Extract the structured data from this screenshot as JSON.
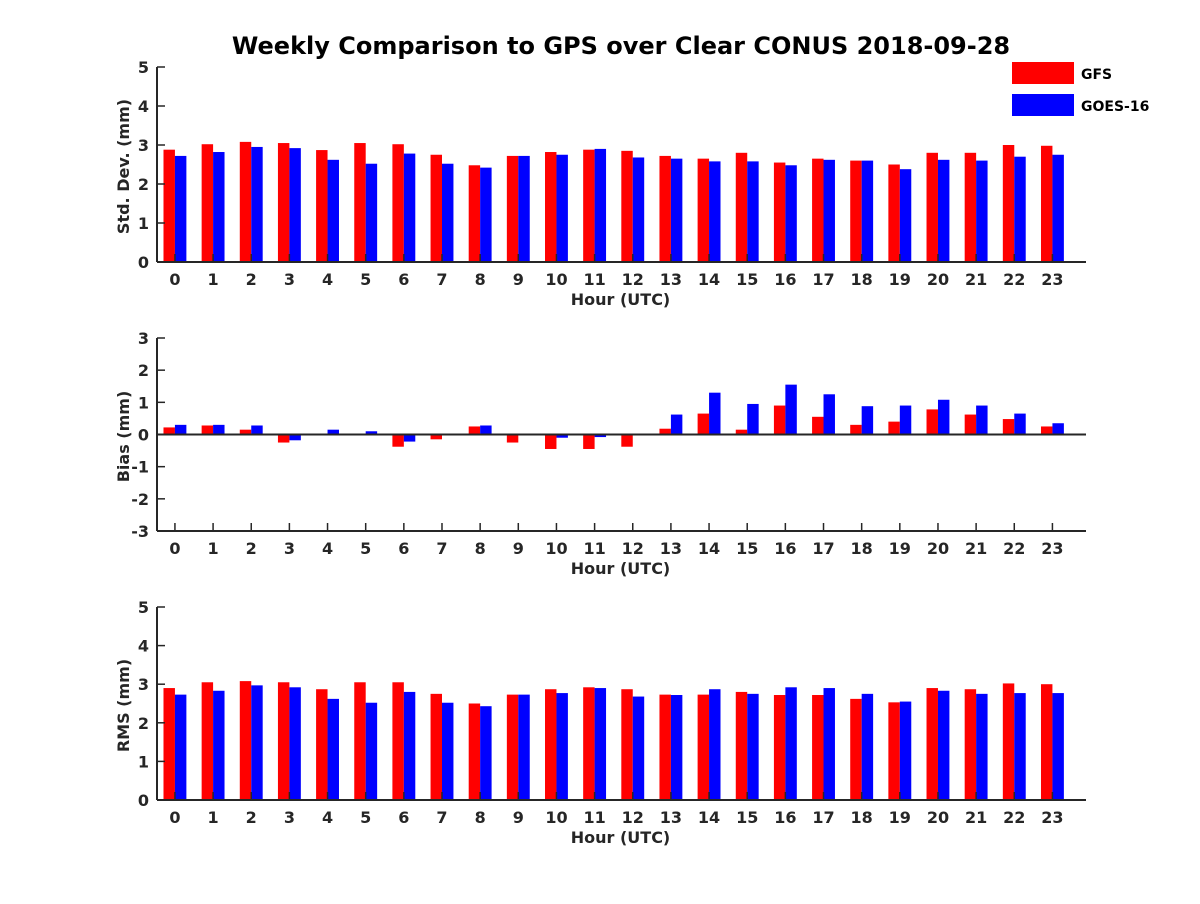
{
  "title": "Weekly Comparison to GPS over Clear CONUS 2018-09-28",
  "legend": [
    {
      "name": "GFS",
      "color": "#ff0000"
    },
    {
      "name": "GOES-16",
      "color": "#0000ff"
    }
  ],
  "chart_data": [
    {
      "type": "bar",
      "title": "Weekly Comparison to GPS over Clear CONUS 2018-09-28",
      "xlabel": "Hour (UTC)",
      "ylabel": "Std. Dev. (mm)",
      "ylim": [
        0,
        5
      ],
      "yticks": [
        "0",
        "1",
        "2",
        "3",
        "4",
        "5"
      ],
      "categories": [
        "0",
        "1",
        "2",
        "3",
        "4",
        "5",
        "6",
        "7",
        "8",
        "9",
        "10",
        "11",
        "12",
        "13",
        "14",
        "15",
        "16",
        "17",
        "18",
        "19",
        "20",
        "21",
        "22",
        "23"
      ],
      "legend_position": "top-right",
      "grid": false,
      "series": [
        {
          "name": "GFS",
          "color": "#ff0000",
          "values": [
            2.88,
            3.02,
            3.08,
            3.05,
            2.87,
            3.05,
            3.02,
            2.75,
            2.48,
            2.72,
            2.82,
            2.88,
            2.85,
            2.72,
            2.65,
            2.8,
            2.55,
            2.65,
            2.6,
            2.5,
            2.8,
            2.8,
            3.0,
            2.98
          ]
        },
        {
          "name": "GOES-16",
          "color": "#0000ff",
          "values": [
            2.72,
            2.82,
            2.95,
            2.92,
            2.62,
            2.52,
            2.78,
            2.52,
            2.42,
            2.72,
            2.75,
            2.9,
            2.68,
            2.65,
            2.58,
            2.58,
            2.48,
            2.62,
            2.6,
            2.38,
            2.62,
            2.6,
            2.7,
            2.75
          ]
        }
      ]
    },
    {
      "type": "bar",
      "title": "",
      "xlabel": "Hour (UTC)",
      "ylabel": "Bias (mm)",
      "ylim": [
        -3,
        3
      ],
      "yticks": [
        "-3",
        "-2",
        "-1",
        "0",
        "1",
        "2",
        "3"
      ],
      "categories": [
        "0",
        "1",
        "2",
        "3",
        "4",
        "5",
        "6",
        "7",
        "8",
        "9",
        "10",
        "11",
        "12",
        "13",
        "14",
        "15",
        "16",
        "17",
        "18",
        "19",
        "20",
        "21",
        "22",
        "23"
      ],
      "grid": false,
      "series": [
        {
          "name": "GFS",
          "color": "#ff0000",
          "values": [
            0.22,
            0.28,
            0.15,
            -0.25,
            0.0,
            0.02,
            -0.38,
            -0.15,
            0.25,
            -0.25,
            -0.45,
            -0.45,
            -0.38,
            0.18,
            0.65,
            0.15,
            0.9,
            0.55,
            0.3,
            0.4,
            0.78,
            0.62,
            0.48,
            0.25
          ]
        },
        {
          "name": "GOES-16",
          "color": "#0000ff",
          "values": [
            0.3,
            0.3,
            0.28,
            -0.18,
            0.15,
            0.1,
            -0.22,
            0.0,
            0.28,
            0.0,
            -0.1,
            -0.08,
            0.03,
            0.62,
            1.3,
            0.95,
            1.55,
            1.25,
            0.88,
            0.9,
            1.08,
            0.9,
            0.65,
            0.35
          ]
        }
      ]
    },
    {
      "type": "bar",
      "title": "",
      "xlabel": "Hour (UTC)",
      "ylabel": "RMS (mm)",
      "ylim": [
        0,
        5
      ],
      "yticks": [
        "0",
        "1",
        "2",
        "3",
        "4",
        "5"
      ],
      "categories": [
        "0",
        "1",
        "2",
        "3",
        "4",
        "5",
        "6",
        "7",
        "8",
        "9",
        "10",
        "11",
        "12",
        "13",
        "14",
        "15",
        "16",
        "17",
        "18",
        "19",
        "20",
        "21",
        "22",
        "23"
      ],
      "grid": false,
      "series": [
        {
          "name": "GFS",
          "color": "#ff0000",
          "values": [
            2.9,
            3.05,
            3.08,
            3.05,
            2.87,
            3.05,
            3.05,
            2.75,
            2.5,
            2.73,
            2.87,
            2.92,
            2.87,
            2.73,
            2.73,
            2.8,
            2.72,
            2.72,
            2.62,
            2.53,
            2.9,
            2.87,
            3.02,
            3.0
          ]
        },
        {
          "name": "GOES-16",
          "color": "#0000ff",
          "values": [
            2.73,
            2.83,
            2.97,
            2.92,
            2.62,
            2.52,
            2.8,
            2.52,
            2.43,
            2.73,
            2.77,
            2.9,
            2.68,
            2.72,
            2.87,
            2.75,
            2.92,
            2.9,
            2.75,
            2.55,
            2.83,
            2.75,
            2.77,
            2.77
          ]
        }
      ]
    }
  ]
}
